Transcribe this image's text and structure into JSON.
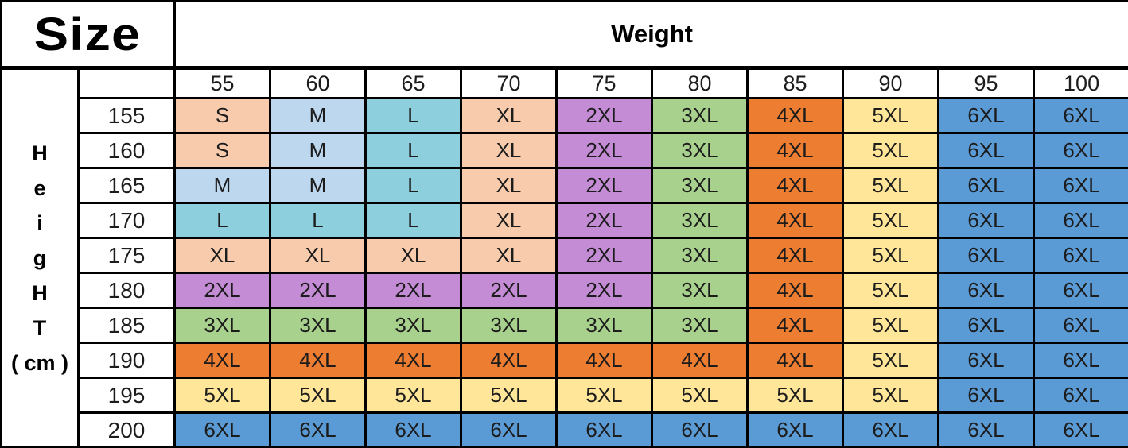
{
  "header": {
    "size_label": "Size",
    "weight_label": "Weight"
  },
  "height_axis_letters": [
    "H",
    "e",
    "i",
    "g",
    "H",
    "T",
    "( cm )"
  ],
  "chart_data": {
    "type": "table",
    "title": "Size",
    "xlabel": "Weight",
    "ylabel": "Height ( cm )",
    "columns_weight_kg": [
      55,
      60,
      65,
      70,
      75,
      80,
      85,
      90,
      95,
      100
    ],
    "rows": [
      {
        "height_cm": 155,
        "sizes": [
          "S",
          "M",
          "L",
          "XL",
          "2XL",
          "3XL",
          "4XL",
          "5XL",
          "6XL",
          "6XL"
        ]
      },
      {
        "height_cm": 160,
        "sizes": [
          "S",
          "M",
          "L",
          "XL",
          "2XL",
          "3XL",
          "4XL",
          "5XL",
          "6XL",
          "6XL"
        ]
      },
      {
        "height_cm": 165,
        "sizes": [
          "M",
          "M",
          "L",
          "XL",
          "2XL",
          "3XL",
          "4XL",
          "5XL",
          "6XL",
          "6XL"
        ]
      },
      {
        "height_cm": 170,
        "sizes": [
          "L",
          "L",
          "L",
          "XL",
          "2XL",
          "3XL",
          "4XL",
          "5XL",
          "6XL",
          "6XL"
        ]
      },
      {
        "height_cm": 175,
        "sizes": [
          "XL",
          "XL",
          "XL",
          "XL",
          "2XL",
          "3XL",
          "4XL",
          "5XL",
          "6XL",
          "6XL"
        ]
      },
      {
        "height_cm": 180,
        "sizes": [
          "2XL",
          "2XL",
          "2XL",
          "2XL",
          "2XL",
          "3XL",
          "4XL",
          "5XL",
          "6XL",
          "6XL"
        ]
      },
      {
        "height_cm": 185,
        "sizes": [
          "3XL",
          "3XL",
          "3XL",
          "3XL",
          "3XL",
          "3XL",
          "4XL",
          "5XL",
          "6XL",
          "6XL"
        ]
      },
      {
        "height_cm": 190,
        "sizes": [
          "4XL",
          "4XL",
          "4XL",
          "4XL",
          "4XL",
          "4XL",
          "4XL",
          "5XL",
          "6XL",
          "6XL"
        ]
      },
      {
        "height_cm": 195,
        "sizes": [
          "5XL",
          "5XL",
          "5XL",
          "5XL",
          "5XL",
          "5XL",
          "5XL",
          "5XL",
          "6XL",
          "6XL"
        ]
      },
      {
        "height_cm": 200,
        "sizes": [
          "6XL",
          "6XL",
          "6XL",
          "6XL",
          "6XL",
          "6XL",
          "6XL",
          "6XL",
          "6XL",
          "6XL"
        ]
      }
    ]
  },
  "size_colors": {
    "S": "#F8CBAD",
    "M": "#BDD7EE",
    "L": "#8ECFDE",
    "XL": "#F8CBAD",
    "2XL": "#C58CD6",
    "3XL": "#A9D18E",
    "4XL": "#ED7D31",
    "5XL": "#FFE699",
    "6XL": "#5B9BD5"
  },
  "border_color": "#000000"
}
